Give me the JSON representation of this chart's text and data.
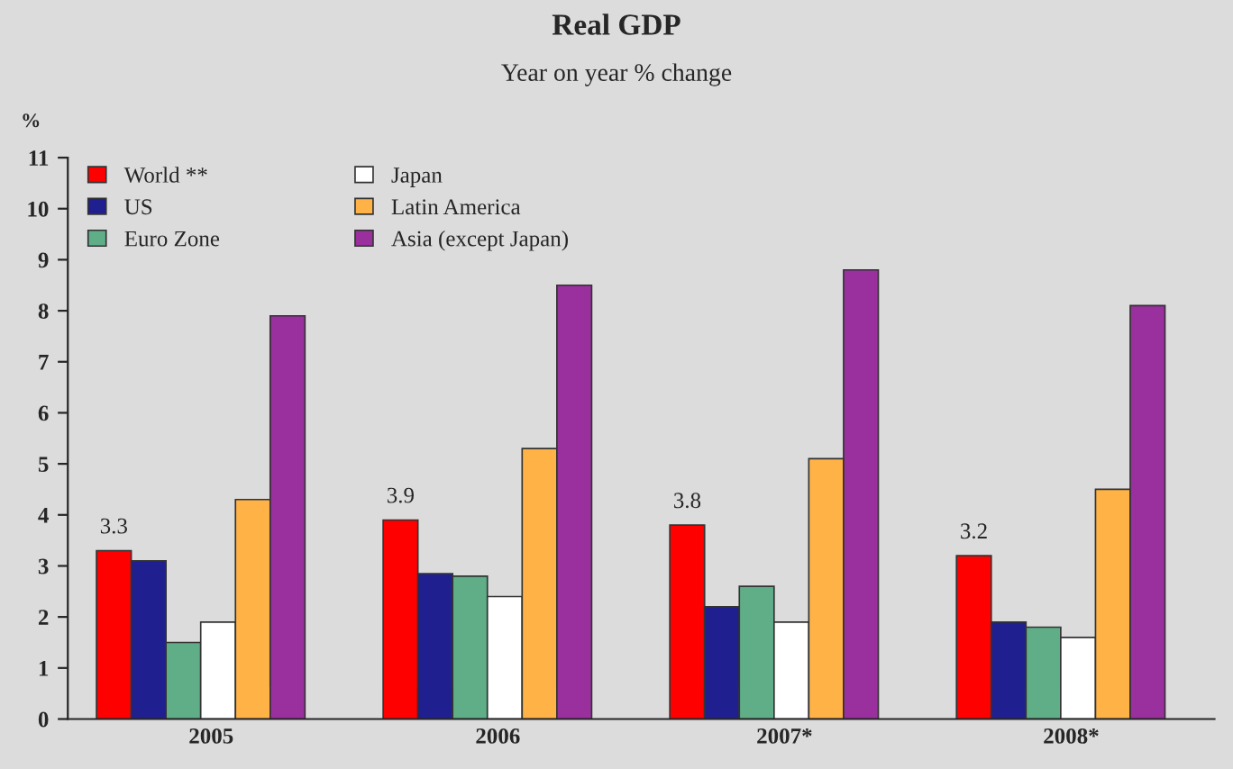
{
  "chart_data": {
    "type": "bar",
    "title": "Real GDP",
    "subtitle": "Year on year % change",
    "ylabel": "%",
    "categories": [
      "2005",
      "2006",
      "2007*",
      "2008*"
    ],
    "series": [
      {
        "name": "World **",
        "color": "#ff0000",
        "values": [
          3.3,
          3.9,
          3.8,
          3.2
        ],
        "value_labels": [
          "3.3",
          "3.9",
          "3.8",
          "3.2"
        ]
      },
      {
        "name": "US",
        "color": "#1f1f8f",
        "values": [
          3.1,
          2.85,
          2.2,
          1.9
        ]
      },
      {
        "name": "Euro Zone",
        "color": "#5fae88",
        "values": [
          1.5,
          2.8,
          2.6,
          1.8
        ]
      },
      {
        "name": "Japan",
        "color": "#ffffff",
        "values": [
          1.9,
          2.4,
          1.9,
          1.6
        ]
      },
      {
        "name": "Latin America",
        "color": "#ffb347",
        "values": [
          4.3,
          5.3,
          5.1,
          4.5
        ]
      },
      {
        "name": "Asia (except Japan)",
        "color": "#9a2f9e",
        "values": [
          7.9,
          8.5,
          8.8,
          8.1
        ]
      }
    ],
    "ylim": [
      0,
      11
    ],
    "yticks": [
      0,
      1,
      2,
      3,
      4,
      5,
      6,
      7,
      8,
      9,
      10,
      11
    ],
    "grid": false,
    "legend": "top left"
  }
}
